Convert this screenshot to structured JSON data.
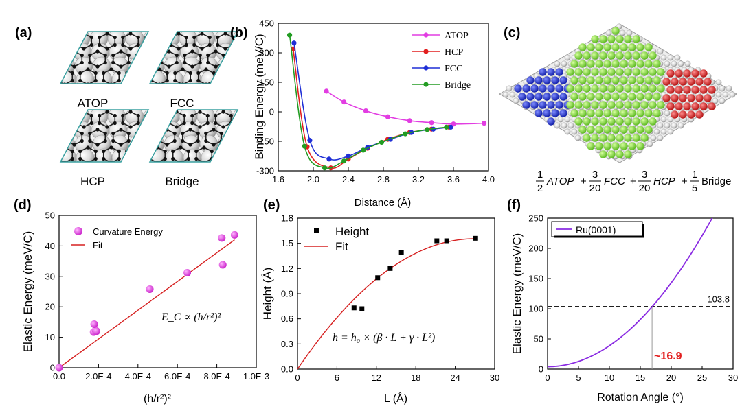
{
  "panels": {
    "a": {
      "label": "(a)",
      "sites": [
        "ATOP",
        "FCC",
        "HCP",
        "Bridge"
      ]
    },
    "c": {
      "label": "(c)",
      "formula": {
        "t1": {
          "num": "1",
          "den": "2",
          "name": "ATOP"
        },
        "t2": {
          "num": "3",
          "den": "20",
          "name": "FCC"
        },
        "t3": {
          "num": "3",
          "den": "20",
          "name": "HCP"
        },
        "t4": {
          "num": "1",
          "den": "5",
          "name": "Bridge"
        }
      },
      "colors": {
        "atop": "#1f2fd0",
        "fcc": "#7fdb2a",
        "hcp": "#e02020",
        "substrate": "#c8c8c8"
      }
    }
  },
  "chart_data": [
    {
      "panel": "(b)",
      "type": "line",
      "xlabel": "Distance (Å)",
      "ylabel": "Binding Energy (meV/C)",
      "xlim": [
        1.6,
        4.0
      ],
      "ylim": [
        -300,
        450
      ],
      "xticks": [
        "1.6",
        "2.0",
        "2.4",
        "2.8",
        "3.2",
        "3.6",
        "4.0"
      ],
      "yticks": [
        "-300",
        "-150",
        "0",
        "150",
        "300",
        "450"
      ],
      "series": [
        {
          "name": "ATOP",
          "color": "#e23de2",
          "x": [
            2.15,
            2.35,
            2.6,
            2.85,
            3.1,
            3.35,
            3.6,
            3.95
          ],
          "y": [
            105,
            50,
            5,
            -25,
            -45,
            -55,
            -62,
            -58
          ]
        },
        {
          "name": "HCP",
          "color": "#e21f1f",
          "x": [
            1.77,
            1.93,
            2.2,
            2.4,
            2.62,
            2.85,
            3.1,
            3.35,
            3.55
          ],
          "y": [
            320,
            -178,
            -285,
            -240,
            -185,
            -140,
            -105,
            -88,
            -78
          ]
        },
        {
          "name": "FCC",
          "color": "#1f2fd6",
          "x": [
            1.78,
            1.96,
            2.18,
            2.4,
            2.62,
            2.88,
            3.12,
            3.37,
            3.57
          ],
          "y": [
            350,
            -145,
            -240,
            -225,
            -180,
            -140,
            -105,
            -88,
            -78
          ]
        },
        {
          "name": "Bridge",
          "color": "#229c22",
          "x": [
            1.73,
            1.9,
            2.13,
            2.35,
            2.57,
            2.78,
            3.05,
            3.3,
            3.52
          ],
          "y": [
            390,
            -175,
            -285,
            -250,
            -195,
            -155,
            -112,
            -90,
            -78
          ]
        }
      ]
    },
    {
      "panel": "(d)",
      "type": "scatter",
      "xlabel": "(h/r²)²",
      "ylabel": "Elastic Energy (meV/C)",
      "xlim": [
        0,
        0.001
      ],
      "ylim": [
        0,
        50
      ],
      "xticks": [
        "0.0",
        "2.0E-4",
        "4.0E-4",
        "6.0E-4",
        "8.0E-4",
        "1.0E-3"
      ],
      "yticks": [
        "0",
        "10",
        "20",
        "30",
        "40",
        "50"
      ],
      "series": [
        {
          "name": "Curvature Energy",
          "color": "#e040e0",
          "x": [
            0.0,
            0.000175,
            0.000185,
            0.00019,
            0.000178,
            0.00046,
            0.00065,
            0.000825,
            0.00083,
            0.00089
          ],
          "y": [
            0.0,
            11.7,
            12.3,
            12.0,
            14.3,
            25.8,
            31.2,
            42.6,
            33.8,
            43.6
          ]
        },
        {
          "name": "Fit",
          "color": "#d62020",
          "x": [
            0.0,
            0.00089
          ],
          "y": [
            0.0,
            42.0
          ]
        }
      ],
      "annotation": "E_C ∝ (h/r²)²"
    },
    {
      "panel": "(e)",
      "type": "scatter",
      "xlabel": "L (Å)",
      "ylabel": "Height (Å)",
      "xlim": [
        0,
        30
      ],
      "ylim": [
        0,
        1.8
      ],
      "xticks": [
        "0",
        "6",
        "12",
        "18",
        "24",
        "30"
      ],
      "yticks": [
        "0.0",
        "0.3",
        "0.6",
        "0.9",
        "1.2",
        "1.5",
        "1.8"
      ],
      "series": [
        {
          "name": "Height",
          "color": "#000000",
          "x": [
            8.6,
            9.8,
            12.2,
            14.1,
            15.8,
            21.2,
            22.7,
            27.1
          ],
          "y": [
            0.73,
            0.72,
            1.09,
            1.2,
            1.39,
            1.53,
            1.53,
            1.56
          ]
        },
        {
          "name": "Fit",
          "color": "#d62020",
          "model": {
            "h0": 1.0,
            "beta": 0.1152,
            "gamma": -0.002134
          },
          "x_range": [
            0,
            27
          ]
        }
      ],
      "annotation": "h = h₀ × (β · L + γ · L²)"
    },
    {
      "panel": "(f)",
      "type": "line",
      "xlabel": "Rotation Angle (°)",
      "ylabel": "Elastic Energy (meV/C)",
      "xlim": [
        0,
        30
      ],
      "ylim": [
        0,
        250
      ],
      "xticks": [
        "0",
        "5",
        "10",
        "15",
        "20",
        "25",
        "30"
      ],
      "yticks": [
        "0",
        "50",
        "100",
        "150",
        "200",
        "250"
      ],
      "series": [
        {
          "name": "Ru(0001)",
          "color": "#8a2be2",
          "model": {
            "a": 4.0,
            "b": 0.3475,
            "p": 2
          },
          "x_range": [
            0,
            27
          ]
        }
      ],
      "hline": {
        "y": 103.8,
        "label": "103.8"
      },
      "vline": {
        "x": 16.9,
        "label": "~16.9",
        "label_color": "#e21f1f"
      }
    }
  ]
}
